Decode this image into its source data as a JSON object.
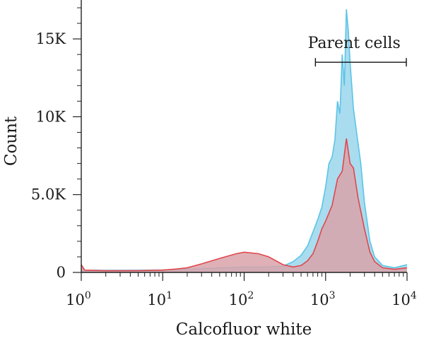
{
  "chart_data": {
    "type": "area",
    "xlabel": "Calcofluor white",
    "ylabel": "Count",
    "xscale": "log",
    "xlim": [
      1,
      10000
    ],
    "ylim": [
      0,
      17500
    ],
    "x_ticks": [
      {
        "value": 1,
        "base": "10",
        "exp": "0"
      },
      {
        "value": 10,
        "base": "10",
        "exp": "1"
      },
      {
        "value": 100,
        "base": "10",
        "exp": "2"
      },
      {
        "value": 1000,
        "base": "10",
        "exp": "3"
      },
      {
        "value": 10000,
        "base": "10",
        "exp": "4"
      }
    ],
    "y_ticks": [
      {
        "value": 0,
        "label": "0"
      },
      {
        "value": 5000,
        "label": "5.0K"
      },
      {
        "value": 10000,
        "label": "10K"
      },
      {
        "value": 15000,
        "label": "15K"
      }
    ],
    "grid": false,
    "legend": "none",
    "gate": {
      "label": "Parent cells",
      "x_range": [
        750,
        10000
      ],
      "y": 13500
    },
    "series": [
      {
        "color": "#5bc4e6",
        "fill": "#a9dcef",
        "points": [
          [
            1,
            500
          ],
          [
            1.1,
            150
          ],
          [
            2,
            130
          ],
          [
            5,
            140
          ],
          [
            10,
            160
          ],
          [
            20,
            200
          ],
          [
            50,
            300
          ],
          [
            100,
            350
          ],
          [
            200,
            360
          ],
          [
            300,
            400
          ],
          [
            400,
            700
          ],
          [
            500,
            1100
          ],
          [
            600,
            1700
          ],
          [
            700,
            2600
          ],
          [
            800,
            3400
          ],
          [
            900,
            4200
          ],
          [
            1000,
            5500
          ],
          [
            1100,
            7000
          ],
          [
            1200,
            7400
          ],
          [
            1300,
            8500
          ],
          [
            1400,
            11000
          ],
          [
            1500,
            10200
          ],
          [
            1600,
            14000
          ],
          [
            1700,
            12000
          ],
          [
            1800,
            16900
          ],
          [
            1900,
            15500
          ],
          [
            2000,
            13500
          ],
          [
            2200,
            10500
          ],
          [
            2400,
            9000
          ],
          [
            2700,
            7000
          ],
          [
            3000,
            4500
          ],
          [
            3500,
            2000
          ],
          [
            4000,
            1000
          ],
          [
            5000,
            450
          ],
          [
            7000,
            300
          ],
          [
            10000,
            500
          ]
        ]
      },
      {
        "color": "#e0474c",
        "fill": "#d9a3aa",
        "points": [
          [
            1,
            500
          ],
          [
            1.1,
            150
          ],
          [
            2,
            110
          ],
          [
            5,
            120
          ],
          [
            10,
            150
          ],
          [
            15,
            220
          ],
          [
            20,
            300
          ],
          [
            30,
            550
          ],
          [
            50,
            900
          ],
          [
            80,
            1200
          ],
          [
            100,
            1300
          ],
          [
            150,
            1200
          ],
          [
            200,
            1000
          ],
          [
            300,
            500
          ],
          [
            400,
            350
          ],
          [
            500,
            450
          ],
          [
            600,
            750
          ],
          [
            700,
            1200
          ],
          [
            800,
            2000
          ],
          [
            900,
            2800
          ],
          [
            1000,
            3300
          ],
          [
            1200,
            4300
          ],
          [
            1400,
            6000
          ],
          [
            1600,
            6500
          ],
          [
            1800,
            8600
          ],
          [
            2000,
            7000
          ],
          [
            2200,
            6700
          ],
          [
            2500,
            4800
          ],
          [
            3000,
            2800
          ],
          [
            3500,
            1300
          ],
          [
            4000,
            700
          ],
          [
            5000,
            300
          ],
          [
            7000,
            200
          ],
          [
            10000,
            300
          ]
        ]
      }
    ]
  }
}
